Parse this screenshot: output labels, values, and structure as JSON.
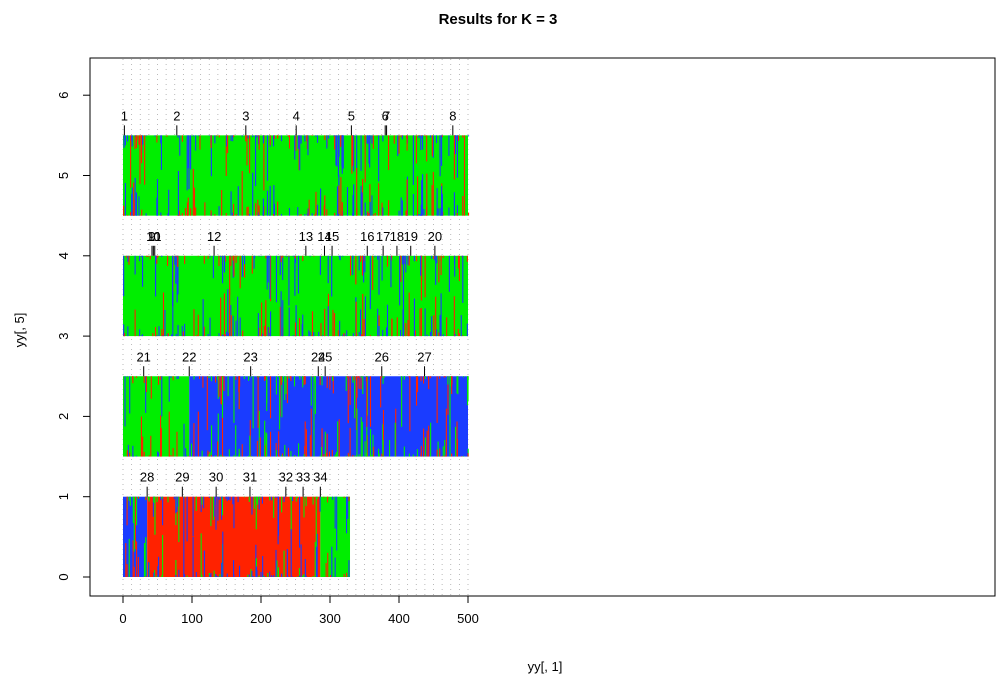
{
  "chart_data": {
    "type": "bar",
    "title": "Results for K = 3",
    "xlabel": "yy[, 1]",
    "ylabel": "yy[, 5]",
    "xlim": [
      0,
      500
    ],
    "ylim": [
      0,
      6
    ],
    "x_ticks": [
      "0",
      "100",
      "200",
      "300",
      "400",
      "500"
    ],
    "y_ticks": [
      "0",
      "1",
      "2",
      "3",
      "4",
      "5",
      "6"
    ],
    "grid": "vertical dotted",
    "colors": {
      "cluster1": "#ff2200",
      "cluster2": "#00ee00",
      "cluster3": "#1a3cff"
    },
    "rows": [
      {
        "base": 4.5,
        "top": 5.5,
        "x_end": 500,
        "dominant": "cluster2",
        "blocks": [
          {
            "from": 0,
            "to": 500,
            "cluster": "cluster2"
          }
        ],
        "labels": [
          {
            "text": "1",
            "x": 2
          },
          {
            "text": "2",
            "x": 78
          },
          {
            "text": "3",
            "x": 178
          },
          {
            "text": "4",
            "x": 251
          },
          {
            "text": "5",
            "x": 331
          },
          {
            "text": "6",
            "x": 380
          },
          {
            "text": "7",
            "x": 382
          },
          {
            "text": "8",
            "x": 478
          }
        ]
      },
      {
        "base": 3.0,
        "top": 4.0,
        "x_end": 500,
        "dominant": "cluster2",
        "blocks": [
          {
            "from": 0,
            "to": 500,
            "cluster": "cluster2"
          }
        ],
        "labels": [
          {
            "text": "9",
            "x": 42
          },
          {
            "text": "10",
            "x": 44
          },
          {
            "text": "11",
            "x": 46
          },
          {
            "text": "12",
            "x": 132
          },
          {
            "text": "13",
            "x": 265
          },
          {
            "text": "14",
            "x": 292
          },
          {
            "text": "15",
            "x": 303
          },
          {
            "text": "16",
            "x": 354
          },
          {
            "text": "17",
            "x": 377
          },
          {
            "text": "18",
            "x": 397
          },
          {
            "text": "19",
            "x": 417
          },
          {
            "text": "20",
            "x": 452
          }
        ]
      },
      {
        "base": 1.5,
        "top": 2.5,
        "x_end": 500,
        "dominant": "cluster3",
        "blocks": [
          {
            "from": 0,
            "to": 96,
            "cluster": "cluster2"
          },
          {
            "from": 96,
            "to": 500,
            "cluster": "cluster3"
          }
        ],
        "labels": [
          {
            "text": "21",
            "x": 30
          },
          {
            "text": "22",
            "x": 96
          },
          {
            "text": "23",
            "x": 185
          },
          {
            "text": "24",
            "x": 283
          },
          {
            "text": "25",
            "x": 293
          },
          {
            "text": "26",
            "x": 375
          },
          {
            "text": "27",
            "x": 437
          }
        ]
      },
      {
        "base": 0.0,
        "top": 1.0,
        "x_end": 329,
        "dominant": "cluster1",
        "blocks": [
          {
            "from": 0,
            "to": 35,
            "cluster": "cluster3"
          },
          {
            "from": 35,
            "to": 286,
            "cluster": "cluster1"
          },
          {
            "from": 286,
            "to": 329,
            "cluster": "cluster2"
          }
        ],
        "labels": [
          {
            "text": "28",
            "x": 35
          },
          {
            "text": "29",
            "x": 86
          },
          {
            "text": "30",
            "x": 135
          },
          {
            "text": "31",
            "x": 184
          },
          {
            "text": "32",
            "x": 236
          },
          {
            "text": "33",
            "x": 261
          },
          {
            "text": "34",
            "x": 286
          }
        ]
      }
    ]
  }
}
